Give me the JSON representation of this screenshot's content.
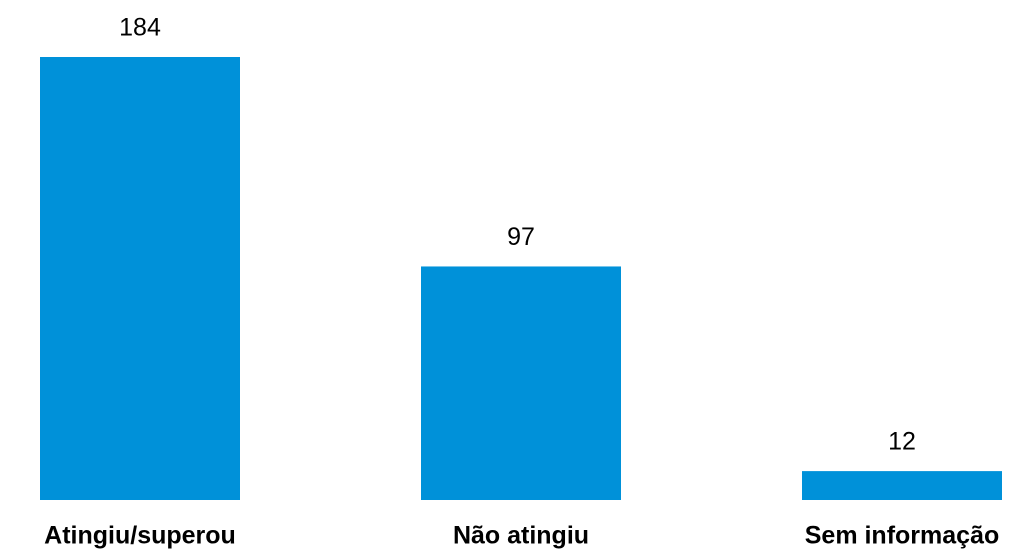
{
  "chart_data": {
    "type": "bar",
    "categories": [
      "Atingiu/superou",
      "Não atingiu",
      "Sem informação"
    ],
    "values": [
      184,
      97,
      12
    ],
    "color": "#0091d9"
  }
}
